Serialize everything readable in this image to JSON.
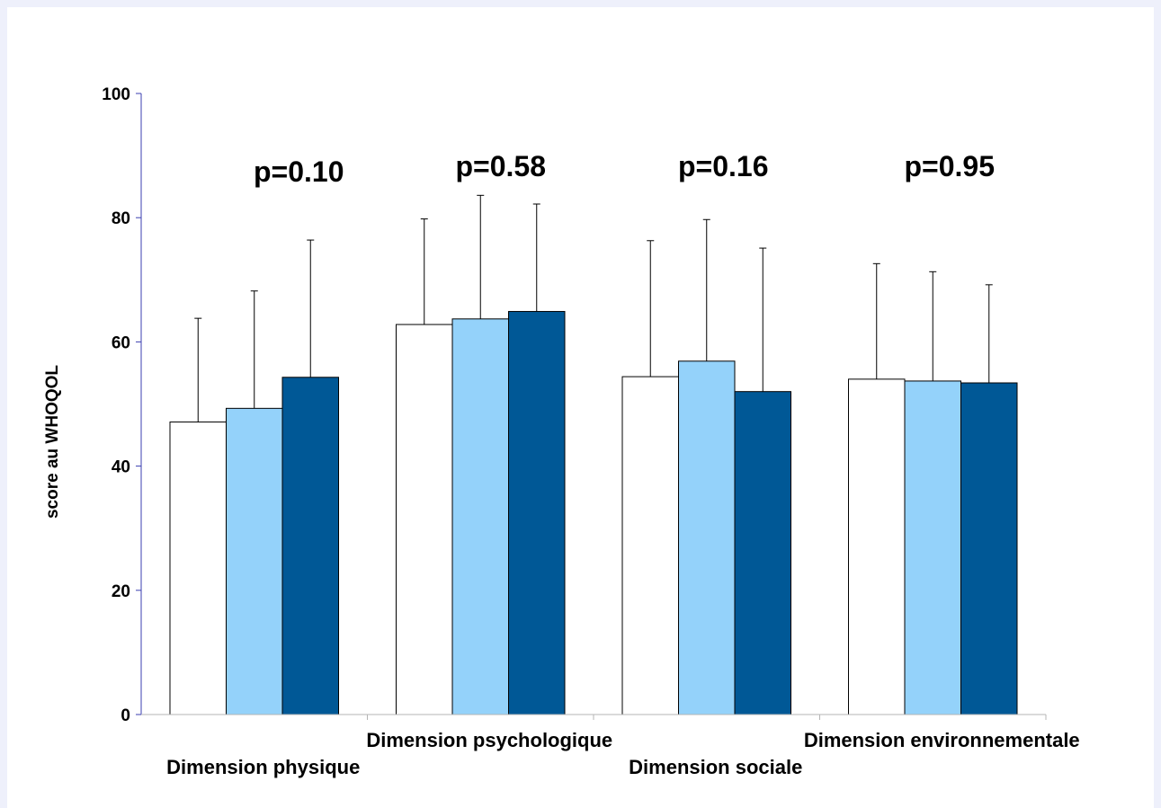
{
  "chart_data": {
    "type": "bar",
    "ylabel": "score au WHOQOL",
    "ylim": [
      0,
      100
    ],
    "yticks": [
      0,
      20,
      40,
      60,
      80,
      100
    ],
    "grid": false,
    "categories": [
      "Dimension physique",
      "Dimension psychologique",
      "Dimension sociale",
      "Dimension environnementale"
    ],
    "series": [
      {
        "color": "#ffffff",
        "values": [
          47.1,
          62.8,
          54.4,
          54.0
        ],
        "error_upper": [
          63.8,
          79.8,
          76.3,
          72.6
        ]
      },
      {
        "color": "#94d2fa",
        "values": [
          49.3,
          63.7,
          56.9,
          53.7
        ],
        "error_upper": [
          68.2,
          83.6,
          79.7,
          71.3
        ]
      },
      {
        "color": "#005896",
        "values": [
          54.3,
          64.9,
          52.0,
          53.4
        ],
        "error_upper": [
          76.4,
          82.2,
          75.1,
          69.2
        ]
      }
    ],
    "annotations": [
      "p=0.10",
      "p=0.58",
      "p=0.16",
      "p=0.95"
    ]
  }
}
